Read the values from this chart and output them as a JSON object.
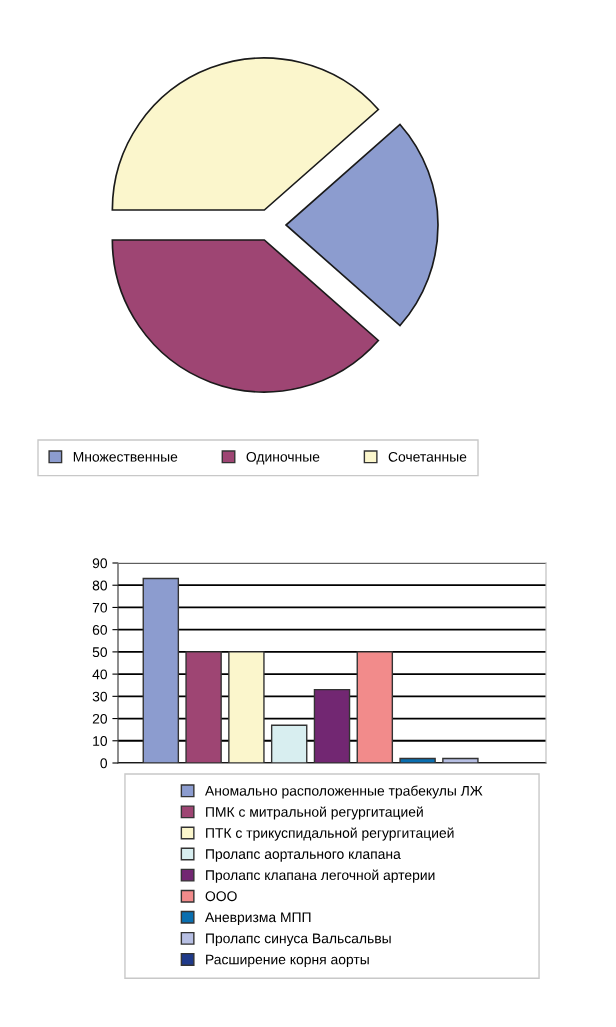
{
  "chart_data": [
    {
      "type": "pie",
      "categories": [
        "Множественные",
        "Одиночные",
        "Сочетанные"
      ],
      "values": [
        23,
        38.5,
        38.5
      ],
      "colors": [
        "#8c9ccf",
        "#9e4573",
        "#fbf6cc"
      ],
      "legend": "bottom"
    },
    {
      "type": "bar",
      "categories": [
        null
      ],
      "ylim": [
        0,
        90
      ],
      "yticks": [
        0,
        10,
        20,
        30,
        40,
        50,
        60,
        70,
        80,
        90
      ],
      "grid": "y",
      "legend": "bottom",
      "series": [
        {
          "name": "Аномально расположенные трабекулы ЛЖ",
          "color": "#8c9ccf",
          "values": [
            83
          ]
        },
        {
          "name": "ПМК с митральной регургитацией",
          "color": "#9e4573",
          "values": [
            50
          ]
        },
        {
          "name": "ПТК с трикуспидальной регургитацией",
          "color": "#fbf6cc",
          "values": [
            50
          ]
        },
        {
          "name": "Пролапс аортального клапана",
          "color": "#d8eef0",
          "values": [
            17
          ]
        },
        {
          "name": "Пролапс клапана легочной артерии",
          "color": "#722772",
          "values": [
            33
          ]
        },
        {
          "name": "ООО",
          "color": "#f28b8b",
          "values": [
            50
          ]
        },
        {
          "name": "Аневризма МПП",
          "color": "#0a6fb0",
          "values": [
            2
          ]
        },
        {
          "name": "Пролапс синуса Вальсальвы",
          "color": "#b7bfe3",
          "values": [
            2
          ]
        },
        {
          "name": "Расширение корня аорты",
          "color": "#1f3a8a",
          "values": [
            null
          ]
        }
      ]
    }
  ]
}
